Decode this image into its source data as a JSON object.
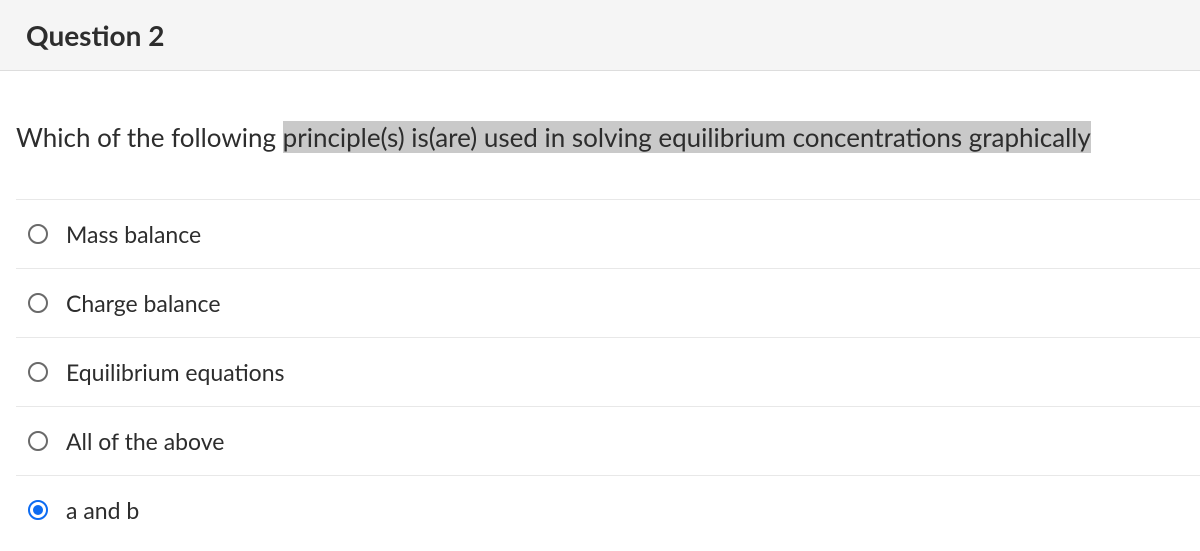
{
  "header": {
    "title": "Question 2"
  },
  "prompt": {
    "pre": "Which of the following ",
    "highlight": "principle(s) is(are) used in solving equilibrium concentrations graphically"
  },
  "options": [
    {
      "label": "Mass balance",
      "selected": false
    },
    {
      "label": "Charge balance",
      "selected": false
    },
    {
      "label": "Equilibrium equations",
      "selected": false
    },
    {
      "label": "All of the above",
      "selected": false
    },
    {
      "label": "a and b",
      "selected": true
    }
  ],
  "style": {
    "header_bg": "#f5f5f5",
    "header_border": "#dddddd",
    "text_color": "#2d2d2d",
    "highlight_bg": "#c9c9c9",
    "option_border": "#e8e8e8",
    "radio_border": "#6a6a6a",
    "radio_selected": "#0d6cf2",
    "title_fontsize": 28,
    "prompt_fontsize": 26,
    "option_fontsize": 23
  }
}
